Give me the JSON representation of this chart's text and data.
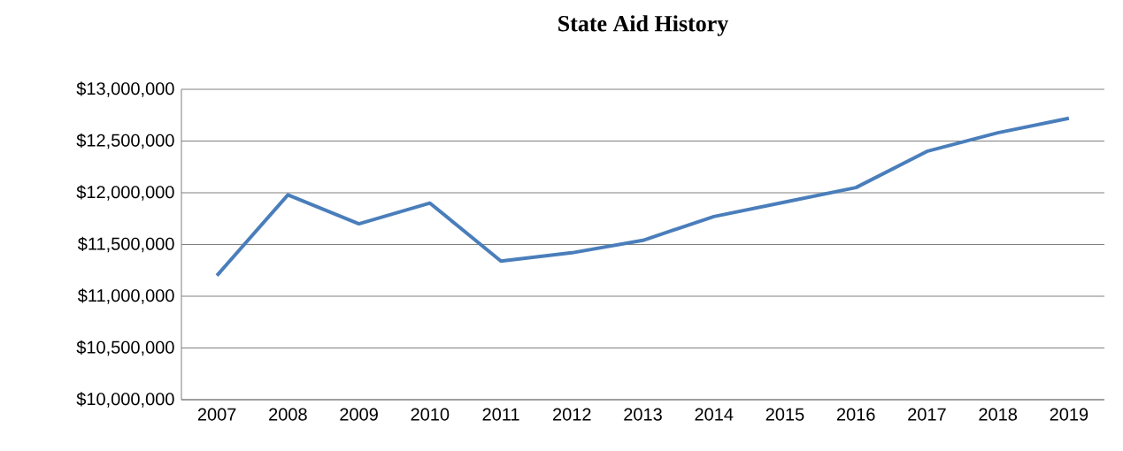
{
  "chart_data": {
    "type": "line",
    "title": "State Aid History",
    "categories": [
      "2007",
      "2008",
      "2009",
      "2010",
      "2011",
      "2012",
      "2013",
      "2014",
      "2015",
      "2016",
      "2017",
      "2018",
      "2019"
    ],
    "series": [
      {
        "color": "#4a7ebb",
        "values": [
          11200000,
          11980000,
          11700000,
          11900000,
          11340000,
          11420000,
          11540000,
          11770000,
          11910000,
          12050000,
          12400000,
          12580000,
          12720000
        ]
      }
    ],
    "ylim": [
      10000000,
      13000000
    ],
    "yticks": [
      {
        "value": 10000000,
        "label": "$10,000,000"
      },
      {
        "value": 10500000,
        "label": "$10,500,000"
      },
      {
        "value": 11000000,
        "label": "$11,000,000"
      },
      {
        "value": 11500000,
        "label": "$11,500,000"
      },
      {
        "value": 12000000,
        "label": "$12,000,000"
      },
      {
        "value": 12500000,
        "label": "$12,500,000"
      },
      {
        "value": 13000000,
        "label": "$13,000,000"
      }
    ],
    "grid": "y"
  }
}
